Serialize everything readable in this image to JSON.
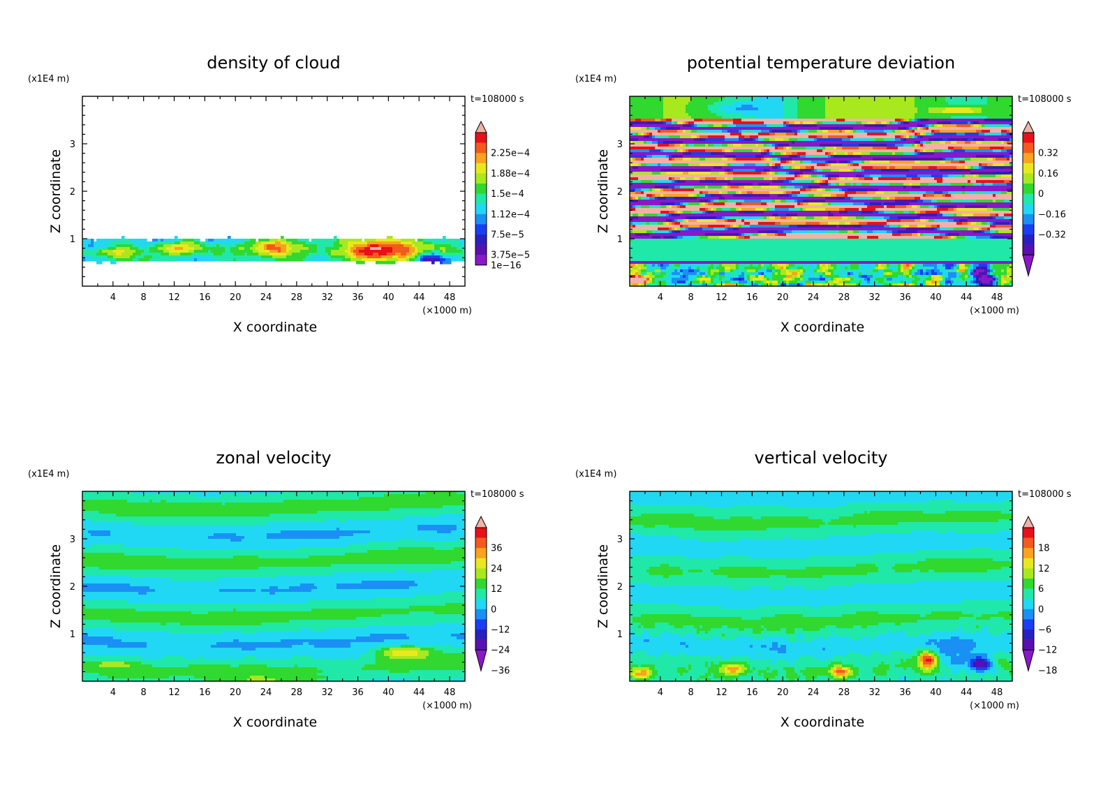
{
  "chart_data": [
    {
      "type": "heatmap",
      "title": "density of cloud",
      "xlabel": "X coordinate",
      "ylabel": "Z coordinate",
      "x_unit": "(×1000 m)",
      "y_unit": "(x1E4 m)",
      "time_label": "t=108000 s",
      "xlim": [
        0,
        50
      ],
      "ylim": [
        0,
        4
      ],
      "x_ticks": [
        "4",
        "8",
        "12",
        "16",
        "20",
        "24",
        "28",
        "32",
        "36",
        "40",
        "44",
        "48"
      ],
      "y_ticks": [
        "1",
        "2",
        "3"
      ],
      "colorbar": {
        "labels": [
          "2.25e-4",
          "1.88e-4",
          "1.5e-4",
          "1.12e-4",
          "7.5e-5",
          "3.75e-5",
          "1e-16"
        ],
        "colors": [
          "#f4b0a8",
          "#e8101a",
          "#f45a1e",
          "#f9a31e",
          "#e8e81e",
          "#a8e81e",
          "#30d830",
          "#20e8a8",
          "#20d8f4",
          "#1a90f4",
          "#1a3ef4",
          "#2a20c0",
          "#5a10b0",
          "#8a18c8"
        ],
        "arrow_top": true,
        "arrow_bottom": false
      },
      "field": {
        "note": "",
        "cloud_layer_z": [
          0.5,
          1.0
        ],
        "cloud_max_x": [
          36,
          43
        ]
      }
    },
    {
      "type": "heatmap",
      "title": "potential temperature deviation",
      "xlabel": "X coordinate",
      "ylabel": "Z coordinate",
      "x_unit": "(×1000 m)",
      "y_unit": "(x1E4 m)",
      "time_label": "t=108000 s",
      "xlim": [
        0,
        50
      ],
      "ylim": [
        0,
        4
      ],
      "x_ticks": [
        "4",
        "8",
        "12",
        "16",
        "20",
        "24",
        "28",
        "32",
        "36",
        "40",
        "44",
        "48"
      ],
      "y_ticks": [
        "1",
        "2",
        "3"
      ],
      "colorbar": {
        "labels": [
          "0.32",
          "0.16",
          "0",
          "-0.16",
          "-0.32"
        ],
        "colors": [
          "#f4b0a8",
          "#e8101a",
          "#f45a1e",
          "#f9a31e",
          "#e8e81e",
          "#a8e81e",
          "#30d830",
          "#20e8a8",
          "#20d8f4",
          "#1a90f4",
          "#1a3ef4",
          "#2a20c0",
          "#5a10b0",
          "#8a18c8"
        ],
        "arrow_top": true,
        "arrow_bottom": true
      }
    },
    {
      "type": "heatmap",
      "title": "zonal velocity",
      "xlabel": "X coordinate",
      "ylabel": "Z coordinate",
      "x_unit": "(×1000 m)",
      "y_unit": "(x1E4 m)",
      "time_label": "t=108000 s",
      "xlim": [
        0,
        50
      ],
      "ylim": [
        0,
        4
      ],
      "x_ticks": [
        "4",
        "8",
        "12",
        "16",
        "20",
        "24",
        "28",
        "32",
        "36",
        "40",
        "44",
        "48"
      ],
      "y_ticks": [
        "1",
        "2",
        "3"
      ],
      "colorbar": {
        "labels": [
          "36",
          "24",
          "12",
          "0",
          "-12",
          "-24",
          "-36"
        ],
        "colors": [
          "#f4b0a8",
          "#e8101a",
          "#f45a1e",
          "#f9a31e",
          "#e8e81e",
          "#a8e81e",
          "#30d830",
          "#20e8a8",
          "#20d8f4",
          "#1a90f4",
          "#1a3ef4",
          "#2a20c0",
          "#5a10b0",
          "#8a18c8"
        ],
        "arrow_top": true,
        "arrow_bottom": true
      }
    },
    {
      "type": "heatmap",
      "title": "vertical velocity",
      "xlabel": "X coordinate",
      "ylabel": "Z coordinate",
      "x_unit": "(×1000 m)",
      "y_unit": "(x1E4 m)",
      "time_label": "t=108000 s",
      "xlim": [
        0,
        50
      ],
      "ylim": [
        0,
        4
      ],
      "x_ticks": [
        "4",
        "8",
        "12",
        "16",
        "20",
        "24",
        "28",
        "32",
        "36",
        "40",
        "44",
        "48"
      ],
      "y_ticks": [
        "1",
        "2",
        "3"
      ],
      "colorbar": {
        "labels": [
          "18",
          "12",
          "6",
          "0",
          "-6",
          "-12",
          "-18"
        ],
        "colors": [
          "#f4b0a8",
          "#e8101a",
          "#f45a1e",
          "#f9a31e",
          "#e8e81e",
          "#a8e81e",
          "#30d830",
          "#20e8a8",
          "#20d8f4",
          "#1a90f4",
          "#1a3ef4",
          "#2a20c0",
          "#5a10b0",
          "#8a18c8"
        ],
        "arrow_top": true,
        "arrow_bottom": true
      }
    }
  ]
}
